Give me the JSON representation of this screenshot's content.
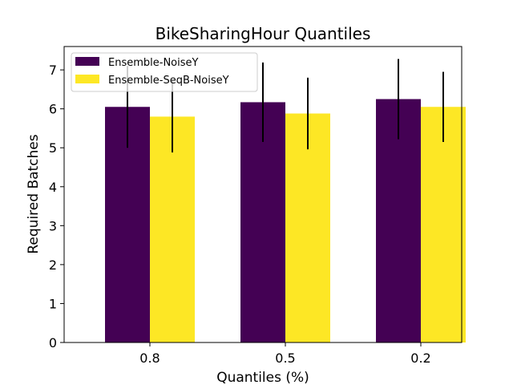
{
  "chart_data": {
    "type": "bar",
    "title": "BikeSharingHour Quantiles",
    "xlabel": "Quantiles (%)",
    "ylabel": "Required Batches",
    "categories": [
      "0.8",
      "0.5",
      "0.2"
    ],
    "ylim": [
      0,
      7.6
    ],
    "yticks": [
      0,
      1,
      2,
      3,
      4,
      5,
      6,
      7
    ],
    "legend_position": "top-left",
    "series": [
      {
        "name": "Ensemble-NoiseY",
        "color": "#440154",
        "values": [
          6.05,
          6.17,
          6.25
        ],
        "error": [
          1.05,
          1.02,
          1.03
        ]
      },
      {
        "name": "Ensemble-SeqB-NoiseY",
        "color": "#fde725",
        "values": [
          5.8,
          5.88,
          6.05
        ],
        "error": [
          0.92,
          0.92,
          0.9
        ]
      }
    ]
  }
}
